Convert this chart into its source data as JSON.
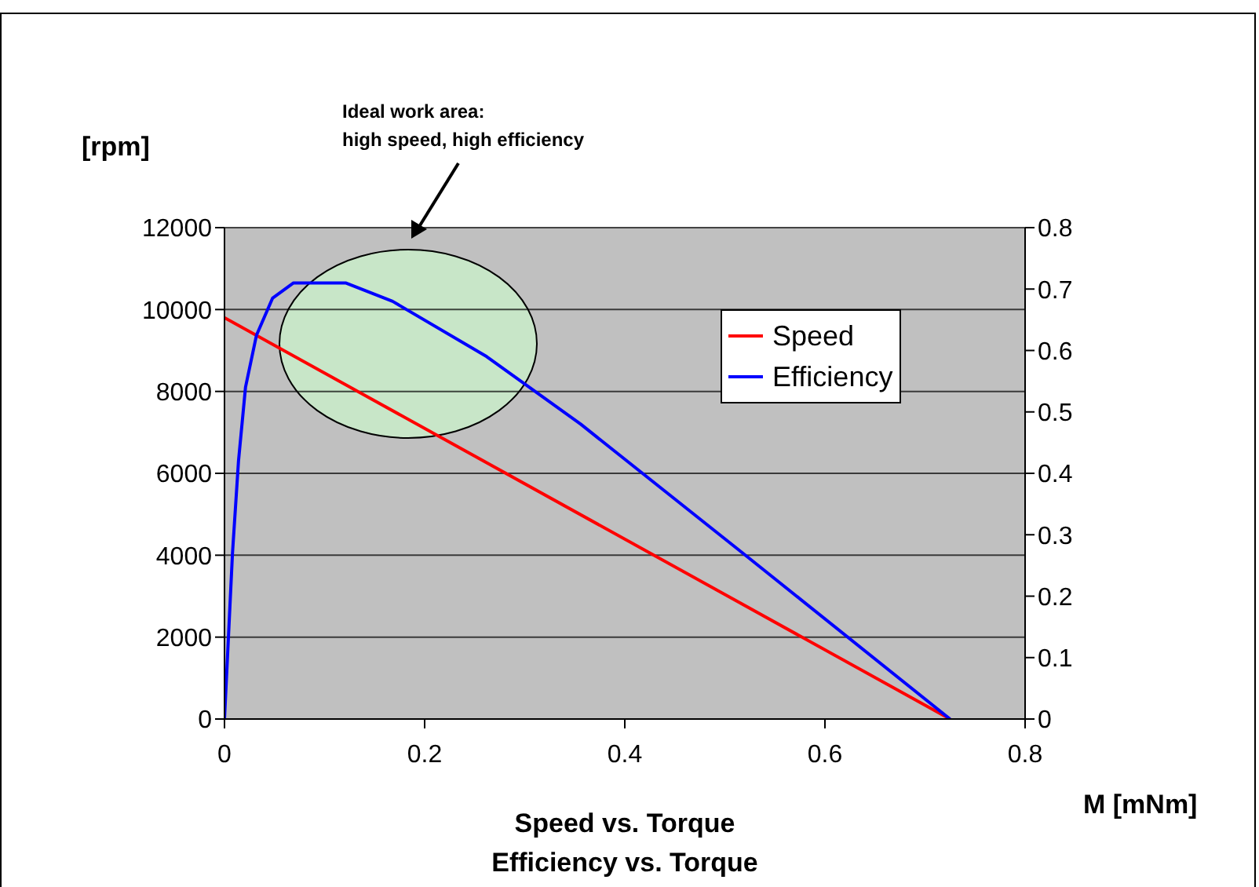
{
  "chart_data": {
    "type": "line",
    "title": "Speed vs. Torque",
    "subtitle": "Efficiency vs. Torque",
    "xlabel": "M [mNm]",
    "ylabel": "[rpm]",
    "annotations": [
      "Ideal work area:\nhigh speed, high efficiency"
    ],
    "series": [
      {
        "name": "Speed",
        "color": "#ff0000",
        "x": [
          0,
          0.725
        ],
        "values": [
          9800,
          0
        ]
      },
      {
        "name": "Efficiency",
        "color": "#0000ff",
        "axis": "y2",
        "x": [
          0,
          0.008,
          0.014,
          0.021,
          0.032,
          0.048,
          0.069,
          0.121,
          0.168,
          0.262,
          0.356,
          0.518,
          0.725
        ],
        "values": [
          0,
          0.27,
          0.42,
          0.54,
          0.625,
          0.685,
          0.71,
          0.71,
          0.68,
          0.59,
          0.48,
          0.27,
          0
        ]
      }
    ],
    "xlim": [
      0,
      0.8
    ],
    "xticks": [
      0,
      0.2,
      0.4,
      0.6,
      0.8
    ],
    "ylim": [
      0,
      12000
    ],
    "yticks": [
      0,
      2000,
      4000,
      6000,
      8000,
      10000,
      12000
    ],
    "y2lim": [
      0,
      0.8
    ],
    "y2ticks": [
      0,
      0.1,
      0.2,
      0.3,
      0.4,
      0.5,
      0.6,
      0.7,
      0.8
    ],
    "grid": "y",
    "legend": "top right",
    "marker": "none",
    "line_style": "solid"
  }
}
